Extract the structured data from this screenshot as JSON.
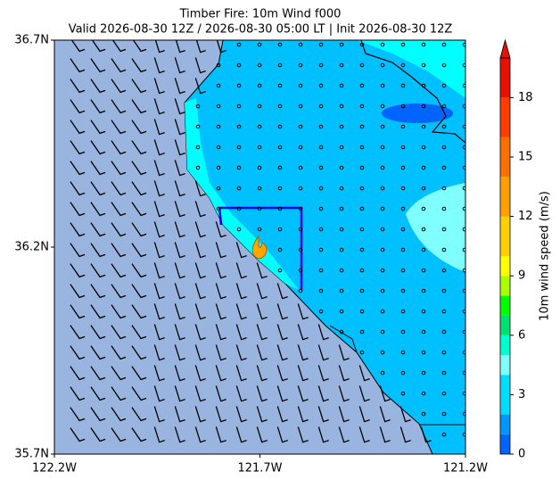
{
  "title": "Timber Fire: 10m Wind f000",
  "subtitle": "Valid 2026-08-30 12Z / 2026-08-30 05:00 LT | Init 2026-08-30 12Z",
  "map": {
    "xlim": [
      -122.2,
      -121.2
    ],
    "ylim": [
      35.7,
      36.7
    ],
    "xticks": [
      {
        "value": -122.2,
        "label": "122.2W"
      },
      {
        "value": -121.7,
        "label": "121.7W"
      },
      {
        "value": -121.2,
        "label": "121.2W"
      }
    ],
    "yticks": [
      {
        "value": 35.7,
        "label": "35.7N"
      },
      {
        "value": 36.2,
        "label": "36.2N"
      },
      {
        "value": 36.7,
        "label": "36.7N"
      }
    ]
  },
  "colorbar": {
    "label": "10m wind speed (m/s)",
    "lim": [
      0,
      20
    ],
    "ticks": [
      0,
      3,
      6,
      9,
      12,
      15,
      18
    ],
    "levels": [
      0,
      1,
      2,
      4,
      5,
      6,
      7,
      8,
      9,
      10,
      12,
      14,
      16,
      18,
      20
    ],
    "colors": [
      "#0064ff",
      "#0096ff",
      "#00dcff",
      "#7fffff",
      "#00ffcc",
      "#00e070",
      "#00ff00",
      "#aaff00",
      "#ffff00",
      "#ffd000",
      "#ffa000",
      "#ff7000",
      "#ff3c00",
      "#e81000"
    ]
  }
}
